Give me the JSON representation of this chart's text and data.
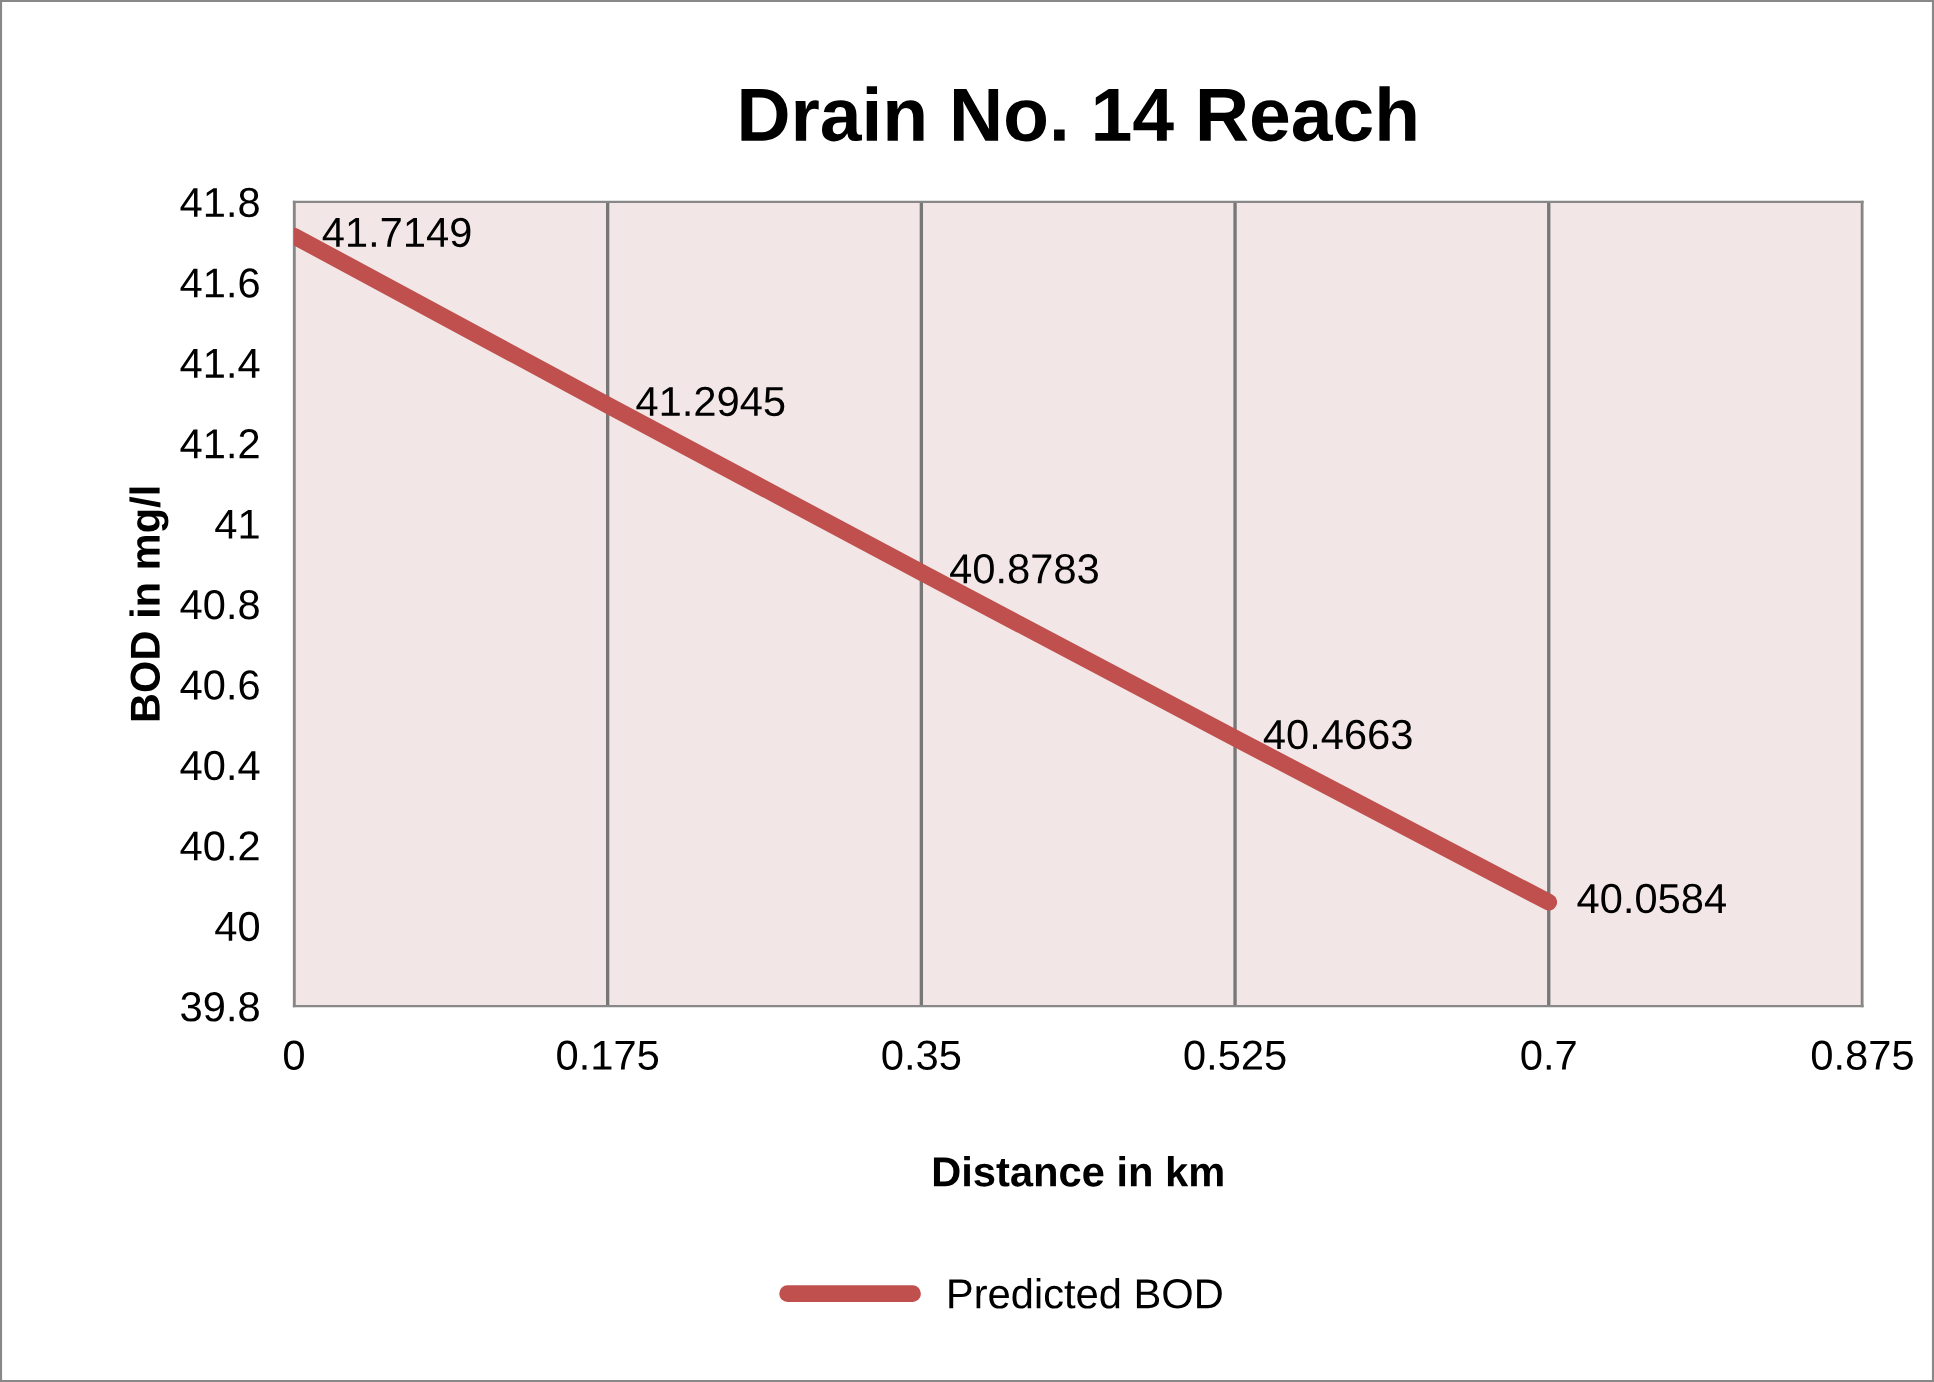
{
  "chart_data": {
    "type": "line",
    "title": "Drain No. 14 Reach",
    "xlabel": "Distance in km",
    "ylabel": "BOD in mg/l",
    "x": [
      0,
      0.175,
      0.35,
      0.525,
      0.7
    ],
    "series": [
      {
        "name": "Predicted BOD",
        "color": "#c0504d",
        "values": [
          41.7149,
          41.2945,
          40.8783,
          40.4663,
          40.0584
        ]
      }
    ],
    "xlim": [
      0,
      0.875
    ],
    "xticks": [
      0,
      0.175,
      0.35,
      0.525,
      0.7,
      0.875
    ],
    "ylim": [
      39.8,
      41.8
    ],
    "yticks": [
      39.8,
      40,
      40.2,
      40.4,
      40.6,
      40.8,
      41,
      41.2,
      41.4,
      41.6,
      41.8
    ],
    "grid": "x",
    "legend": "bottom",
    "data_labels": true,
    "marker": "none",
    "line_style": "solid"
  }
}
